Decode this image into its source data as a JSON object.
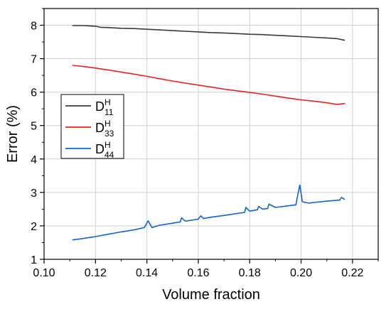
{
  "chart_data": {
    "type": "line",
    "xlabel": "Volume fraction",
    "ylabel": "Error (%)",
    "xlim": [
      0.1,
      0.23
    ],
    "ylim": [
      1,
      8.5
    ],
    "xticks": [
      "0.10",
      "0.12",
      "0.14",
      "0.16",
      "0.18",
      "0.20",
      "0.22"
    ],
    "yticks": [
      "1",
      "2",
      "3",
      "4",
      "5",
      "6",
      "7",
      "8"
    ],
    "grid": true,
    "legend_position": "left-middle",
    "series": [
      {
        "name": "D",
        "superscript": "H",
        "subscript": "11",
        "color": "#3a3a3a",
        "points": [
          [
            0.111,
            7.99
          ],
          [
            0.115,
            7.99
          ],
          [
            0.12,
            7.97
          ],
          [
            0.122,
            7.94
          ],
          [
            0.125,
            7.93
          ],
          [
            0.13,
            7.91
          ],
          [
            0.135,
            7.9
          ],
          [
            0.14,
            7.88
          ],
          [
            0.145,
            7.86
          ],
          [
            0.15,
            7.84
          ],
          [
            0.155,
            7.82
          ],
          [
            0.16,
            7.8
          ],
          [
            0.165,
            7.78
          ],
          [
            0.17,
            7.77
          ],
          [
            0.175,
            7.75
          ],
          [
            0.18,
            7.73
          ],
          [
            0.185,
            7.72
          ],
          [
            0.19,
            7.7
          ],
          [
            0.195,
            7.68
          ],
          [
            0.2,
            7.66
          ],
          [
            0.205,
            7.64
          ],
          [
            0.21,
            7.62
          ],
          [
            0.214,
            7.6
          ],
          [
            0.217,
            7.55
          ]
        ]
      },
      {
        "name": "D",
        "superscript": "H",
        "subscript": "33",
        "color": "#e8231f",
        "points": [
          [
            0.111,
            6.8
          ],
          [
            0.115,
            6.77
          ],
          [
            0.12,
            6.72
          ],
          [
            0.125,
            6.66
          ],
          [
            0.13,
            6.6
          ],
          [
            0.135,
            6.54
          ],
          [
            0.14,
            6.47
          ],
          [
            0.145,
            6.4
          ],
          [
            0.15,
            6.33
          ],
          [
            0.155,
            6.27
          ],
          [
            0.16,
            6.21
          ],
          [
            0.165,
            6.15
          ],
          [
            0.17,
            6.09
          ],
          [
            0.175,
            6.04
          ],
          [
            0.18,
            5.99
          ],
          [
            0.185,
            5.94
          ],
          [
            0.19,
            5.88
          ],
          [
            0.195,
            5.82
          ],
          [
            0.2,
            5.77
          ],
          [
            0.205,
            5.73
          ],
          [
            0.21,
            5.68
          ],
          [
            0.214,
            5.63
          ],
          [
            0.217,
            5.66
          ]
        ]
      },
      {
        "name": "D",
        "superscript": "H",
        "subscript": "44",
        "color": "#1464c8",
        "points": [
          [
            0.111,
            1.58
          ],
          [
            0.115,
            1.62
          ],
          [
            0.12,
            1.68
          ],
          [
            0.125,
            1.75
          ],
          [
            0.13,
            1.82
          ],
          [
            0.135,
            1.88
          ],
          [
            0.139,
            1.95
          ],
          [
            0.1405,
            2.15
          ],
          [
            0.142,
            1.95
          ],
          [
            0.145,
            2.02
          ],
          [
            0.15,
            2.08
          ],
          [
            0.153,
            2.12
          ],
          [
            0.1535,
            2.24
          ],
          [
            0.155,
            2.14
          ],
          [
            0.16,
            2.2
          ],
          [
            0.161,
            2.3
          ],
          [
            0.162,
            2.22
          ],
          [
            0.165,
            2.26
          ],
          [
            0.17,
            2.31
          ],
          [
            0.175,
            2.37
          ],
          [
            0.178,
            2.4
          ],
          [
            0.1785,
            2.55
          ],
          [
            0.18,
            2.44
          ],
          [
            0.183,
            2.48
          ],
          [
            0.1835,
            2.58
          ],
          [
            0.185,
            2.5
          ],
          [
            0.187,
            2.52
          ],
          [
            0.1875,
            2.65
          ],
          [
            0.19,
            2.55
          ],
          [
            0.195,
            2.6
          ],
          [
            0.198,
            2.63
          ],
          [
            0.1985,
            2.85
          ],
          [
            0.1995,
            3.22
          ],
          [
            0.2005,
            2.72
          ],
          [
            0.203,
            2.68
          ],
          [
            0.205,
            2.7
          ],
          [
            0.21,
            2.74
          ],
          [
            0.215,
            2.77
          ],
          [
            0.2157,
            2.85
          ],
          [
            0.217,
            2.79
          ]
        ]
      }
    ]
  }
}
